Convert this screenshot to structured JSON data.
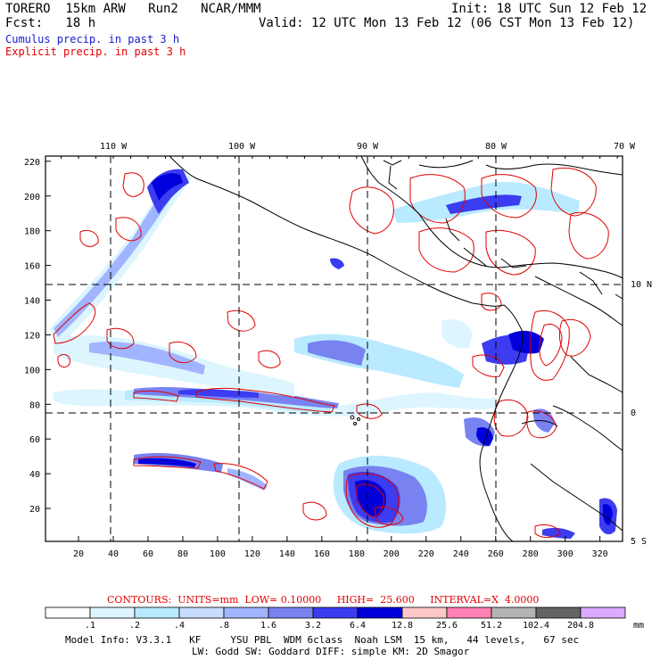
{
  "header": {
    "model": "TORERO  15km ARW   Run2   NCAR/MMM",
    "init": "Init: 18 UTC Sun 12 Feb 12",
    "fcst": "Fcst:   18 h",
    "valid": "Valid: 12 UTC Mon 13 Feb 12 (06 CST Mon 13 Feb 12)",
    "field1": "Cumulus precip. in past 3 h",
    "field2": "Explicit precip. in past 3 h"
  },
  "axes": {
    "lon_labels": [
      "110 W",
      "100 W",
      "90 W",
      "80 W",
      "70 W"
    ],
    "lat_labels": [
      "10 N",
      "0",
      "5 S"
    ],
    "x_ticks": [
      "20",
      "40",
      "60",
      "80",
      "100",
      "120",
      "140",
      "160",
      "180",
      "200",
      "220",
      "240",
      "260",
      "280",
      "300",
      "320"
    ],
    "y_ticks": [
      "20",
      "40",
      "60",
      "80",
      "100",
      "120",
      "140",
      "160",
      "180",
      "200",
      "220"
    ]
  },
  "contours": {
    "text": "CONTOURS:  UNITS=mm  LOW= 0.10000     HIGH=  25.600     INTERVAL=X  4.0000"
  },
  "legend": {
    "labels": [
      ".1",
      ".2",
      ".4",
      ".8",
      "1.6",
      "3.2",
      "6.4",
      "12.8",
      "25.6",
      "51.2",
      "102.4",
      "204.8"
    ],
    "unit": "mm",
    "colors": [
      "#ffffff",
      "#dcf5ff",
      "#b9eaff",
      "#c8dcff",
      "#a0b4ff",
      "#7882f0",
      "#3c3cf0",
      "#0000dc",
      "#ffc8c8",
      "#ff82b4",
      "#b4b4b4",
      "#646464",
      "#dcaaff"
    ]
  },
  "footer": {
    "line1": "Model Info: V3.3.1   KF     YSU PBL  WDM 6class  Noah LSM  15 km,   44 levels,   67 sec",
    "line2": "LW: Godd SW: Goddard DIFF: simple KM: 2D Smagor"
  }
}
